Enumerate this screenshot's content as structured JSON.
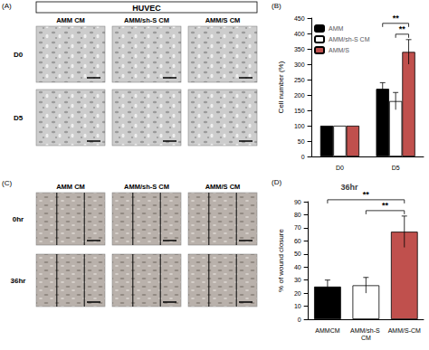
{
  "chart_data": [
    {
      "type": "bar",
      "panel": "(B)",
      "y_label": "Cell number (%)",
      "categories": [
        "D0",
        "D5"
      ],
      "series": [
        {
          "name": "AMM",
          "color": "#000000",
          "values": [
            100,
            220
          ],
          "errors": [
            0,
            20
          ]
        },
        {
          "name": "AMM/sh-S CM",
          "color": "#ffffff",
          "values": [
            100,
            180
          ],
          "errors": [
            0,
            28
          ]
        },
        {
          "name": "AMM/S",
          "color": "#c0504d",
          "values": [
            100,
            340
          ],
          "errors": [
            0,
            40
          ]
        }
      ],
      "ylim": [
        0,
        450
      ],
      "yticks": [
        0,
        50,
        100,
        150,
        200,
        250,
        300,
        350,
        400,
        450
      ],
      "grid": false,
      "legend": "upper left",
      "annotations": [
        {
          "text": "**",
          "category": "D5",
          "between": [
            "AMM",
            "AMM/S"
          ]
        },
        {
          "text": "**",
          "category": "D5",
          "between": [
            "AMM/sh-S CM",
            "AMM/S"
          ]
        }
      ]
    },
    {
      "type": "bar",
      "panel": "(D)",
      "title": "36hr",
      "y_label": "% of wound closure",
      "categories": [
        "AMMCM",
        "AMM/sh-S CM",
        "AMM/S-CM"
      ],
      "values": [
        25,
        26,
        67
      ],
      "errors": [
        5,
        6,
        12
      ],
      "colors": [
        "#000000",
        "#ffffff",
        "#c0504d"
      ],
      "ylim": [
        0,
        90
      ],
      "yticks": [
        0,
        10,
        20,
        30,
        40,
        50,
        60,
        70,
        80,
        90
      ],
      "grid": false,
      "annotations": [
        {
          "text": "**",
          "between": [
            "AMMCM",
            "AMM/S-CM"
          ]
        },
        {
          "text": "**",
          "between": [
            "AMM/sh-S CM",
            "AMM/S-CM"
          ]
        }
      ]
    }
  ],
  "image_panels": [
    {
      "label": "(A)",
      "title": "HUVEC",
      "columns": [
        "AMM CM",
        "AMM/sh-S CM",
        "AMM/S CM"
      ],
      "rows": [
        "D0",
        "D5"
      ]
    },
    {
      "label": "(C)",
      "columns": [
        "AMM CM",
        "AMM/sh-S CM",
        "AMM/S CM"
      ],
      "rows": [
        "0hr",
        "36hr"
      ]
    }
  ]
}
